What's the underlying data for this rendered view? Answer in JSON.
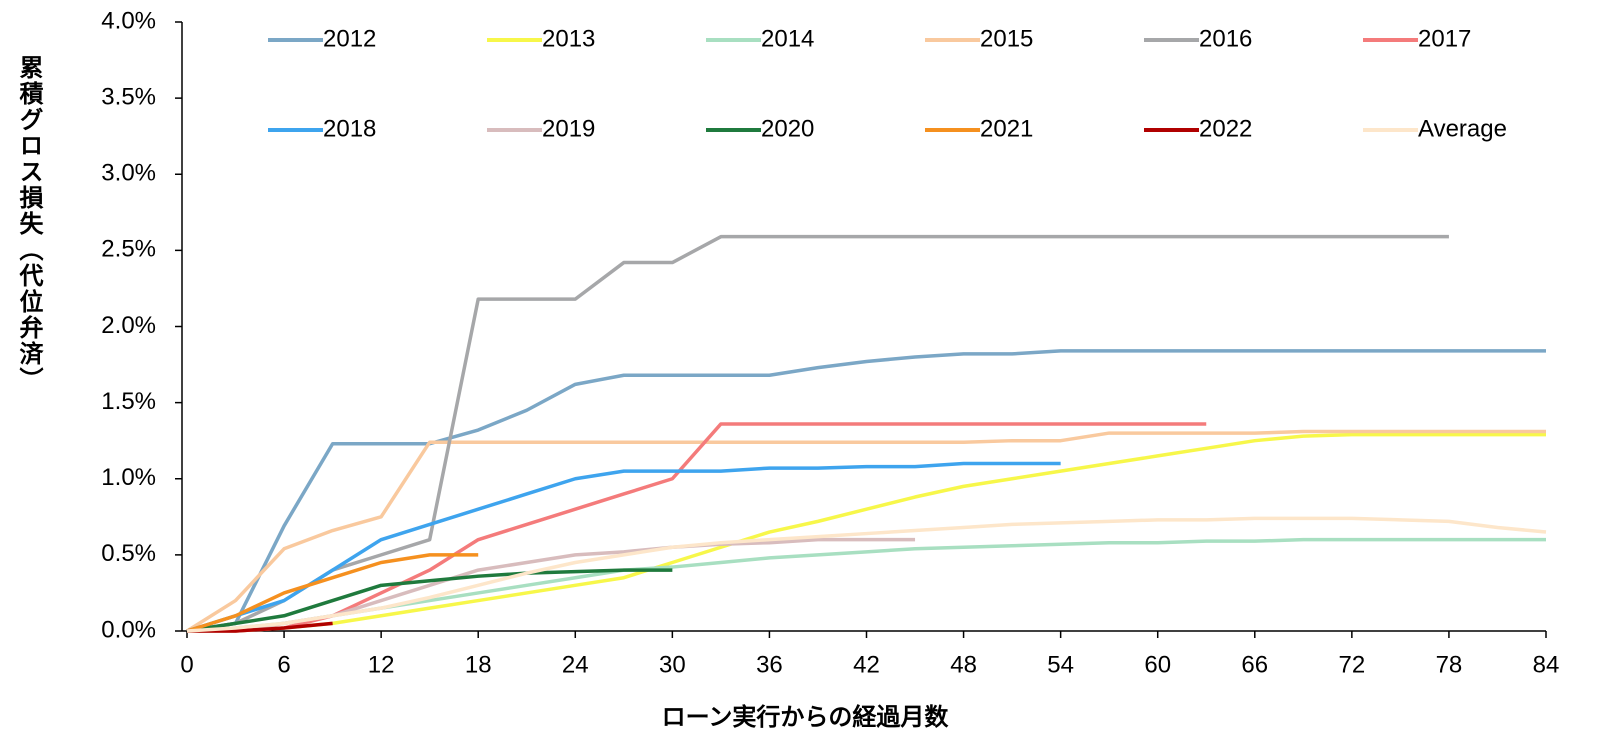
{
  "chart_data": {
    "type": "line",
    "x_label": "ローン実行からの経過月数",
    "y_label": "累積グロス損失（代位弁済）",
    "x": [
      0,
      3,
      6,
      9,
      12,
      15,
      18,
      21,
      24,
      27,
      30,
      33,
      36,
      39,
      42,
      45,
      48,
      51,
      54,
      57,
      60,
      63,
      66,
      69,
      72,
      75,
      78,
      81,
      84
    ],
    "xlim": [
      0,
      84
    ],
    "xticks": [
      0,
      6,
      12,
      18,
      24,
      30,
      36,
      42,
      48,
      54,
      60,
      66,
      72,
      78,
      84
    ],
    "ylim": [
      0,
      4
    ],
    "yticks": [
      {
        "value": 0,
        "label": "0.0%"
      },
      {
        "value": 0.5,
        "label": "0.5%"
      },
      {
        "value": 1,
        "label": "1.0%"
      },
      {
        "value": 1.5,
        "label": "1.5%"
      },
      {
        "value": 2,
        "label": "2.0%"
      },
      {
        "value": 2.5,
        "label": "2.5%"
      },
      {
        "value": 3,
        "label": "3.0%"
      },
      {
        "value": 3.5,
        "label": "3.5%"
      },
      {
        "value": 4,
        "label": "4.0%"
      }
    ],
    "grid": false,
    "legend": "top",
    "series": [
      {
        "name": "2012",
        "color": "#7ba7c6",
        "values": [
          0,
          0.05,
          0.69,
          1.23,
          1.23,
          1.23,
          1.32,
          1.45,
          1.62,
          1.68,
          1.68,
          1.68,
          1.68,
          1.73,
          1.77,
          1.8,
          1.82,
          1.82,
          1.84,
          1.84,
          1.84,
          1.84,
          1.84,
          1.84,
          1.84,
          1.84,
          1.84,
          1.84,
          1.84
        ]
      },
      {
        "name": "2013",
        "color": "#f7f74a",
        "values": [
          0,
          0,
          0.02,
          0.05,
          0.1,
          0.15,
          0.2,
          0.25,
          0.3,
          0.35,
          0.45,
          0.55,
          0.65,
          0.72,
          0.8,
          0.88,
          0.95,
          1.0,
          1.05,
          1.1,
          1.15,
          1.2,
          1.25,
          1.28,
          1.29,
          1.29,
          1.29,
          1.29,
          1.29
        ]
      },
      {
        "name": "2014",
        "color": "#a8dfc1",
        "values": [
          0,
          0.02,
          0.05,
          0.1,
          0.15,
          0.2,
          0.25,
          0.3,
          0.35,
          0.4,
          0.42,
          0.45,
          0.48,
          0.5,
          0.52,
          0.54,
          0.55,
          0.56,
          0.57,
          0.58,
          0.58,
          0.59,
          0.59,
          0.6,
          0.6,
          0.6,
          0.6,
          0.6,
          0.6
        ]
      },
      {
        "name": "2015",
        "color": "#f9c99e",
        "values": [
          0,
          0.2,
          0.54,
          0.66,
          0.75,
          1.24,
          1.24,
          1.24,
          1.24,
          1.24,
          1.24,
          1.24,
          1.24,
          1.24,
          1.24,
          1.24,
          1.24,
          1.25,
          1.25,
          1.3,
          1.3,
          1.3,
          1.3,
          1.31,
          1.31,
          1.31,
          1.31,
          1.31,
          1.31
        ]
      },
      {
        "name": "2016",
        "color": "#a6a7a9",
        "values": [
          0,
          0.05,
          0.2,
          0.4,
          0.5,
          0.6,
          2.18,
          2.18,
          2.18,
          2.42,
          2.42,
          2.59,
          2.59,
          2.59,
          2.59,
          2.59,
          2.59,
          2.59,
          2.59,
          2.59,
          2.59,
          2.59,
          2.59,
          2.59,
          2.59,
          2.59,
          2.59,
          null,
          null
        ]
      },
      {
        "name": "2017",
        "color": "#f47b7b",
        "values": [
          0,
          0,
          0.02,
          0.1,
          0.25,
          0.4,
          0.6,
          0.7,
          0.8,
          0.9,
          1.0,
          1.36,
          1.36,
          1.36,
          1.36,
          1.36,
          1.36,
          1.36,
          1.36,
          1.36,
          1.36,
          1.36,
          null,
          null,
          null,
          null,
          null,
          null,
          null
        ]
      },
      {
        "name": "2018",
        "color": "#3ea4ee",
        "values": [
          0,
          0.1,
          0.2,
          0.4,
          0.6,
          0.7,
          0.8,
          0.9,
          1.0,
          1.05,
          1.05,
          1.05,
          1.07,
          1.07,
          1.08,
          1.08,
          1.1,
          1.1,
          1.1,
          null,
          null,
          null,
          null,
          null,
          null,
          null,
          null,
          null,
          null
        ]
      },
      {
        "name": "2019",
        "color": "#d8bcbd",
        "values": [
          0,
          0,
          0.05,
          0.1,
          0.2,
          0.3,
          0.4,
          0.45,
          0.5,
          0.52,
          0.55,
          0.57,
          0.58,
          0.6,
          0.6,
          0.6,
          null,
          null,
          null,
          null,
          null,
          null,
          null,
          null,
          null,
          null,
          null,
          null,
          null
        ]
      },
      {
        "name": "2020",
        "color": "#1f7a3d",
        "values": [
          0,
          0.05,
          0.1,
          0.2,
          0.3,
          0.33,
          0.36,
          0.38,
          0.39,
          0.4,
          0.4,
          null,
          null,
          null,
          null,
          null,
          null,
          null,
          null,
          null,
          null,
          null,
          null,
          null,
          null,
          null,
          null,
          null,
          null
        ]
      },
      {
        "name": "2021",
        "color": "#f5901f",
        "values": [
          0,
          0.1,
          0.25,
          0.35,
          0.45,
          0.5,
          0.5,
          null,
          null,
          null,
          null,
          null,
          null,
          null,
          null,
          null,
          null,
          null,
          null,
          null,
          null,
          null,
          null,
          null,
          null,
          null,
          null,
          null,
          null
        ]
      },
      {
        "name": "2022",
        "color": "#b00000",
        "values": [
          0,
          0,
          0.02,
          0.05,
          null,
          null,
          null,
          null,
          null,
          null,
          null,
          null,
          null,
          null,
          null,
          null,
          null,
          null,
          null,
          null,
          null,
          null,
          null,
          null,
          null,
          null,
          null,
          null,
          null
        ]
      },
      {
        "name": "Average",
        "color": "#fde6ca",
        "values": [
          0,
          0.02,
          0.05,
          0.1,
          0.15,
          0.22,
          0.3,
          0.38,
          0.45,
          0.5,
          0.55,
          0.58,
          0.6,
          0.62,
          0.64,
          0.66,
          0.68,
          0.7,
          0.71,
          0.72,
          0.73,
          0.73,
          0.74,
          0.74,
          0.74,
          0.73,
          0.72,
          0.68,
          0.65
        ]
      }
    ]
  }
}
